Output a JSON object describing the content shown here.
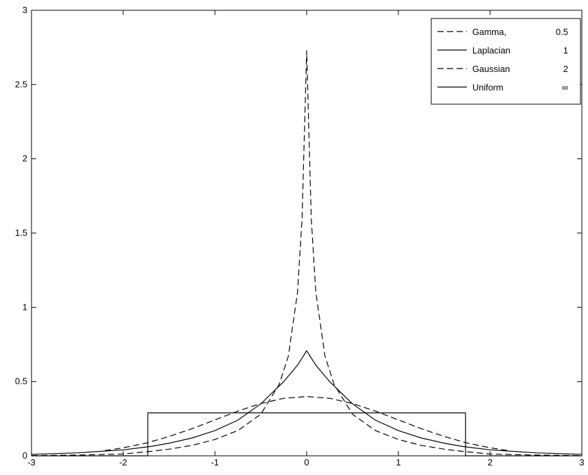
{
  "chart_data": {
    "type": "line",
    "title": "",
    "xlabel": "",
    "ylabel": "",
    "xlim": [
      -3,
      3
    ],
    "ylim": [
      0,
      3
    ],
    "x_ticks": [
      "-3",
      "-2",
      "-1",
      "0",
      "1",
      "2",
      "3"
    ],
    "y_ticks": [
      "0",
      "0.5",
      "1",
      "1.5",
      "2",
      "2.5",
      "3"
    ],
    "grid": false,
    "legend_position": "top-right",
    "series": [
      {
        "name": "Gamma,",
        "param": "0.5",
        "style": "dashed",
        "points": [
          [
            -3,
            0.002
          ],
          [
            -2.5,
            0.005
          ],
          [
            -2,
            0.012
          ],
          [
            -1.7,
            0.03
          ],
          [
            -1.5,
            0.045
          ],
          [
            -1.25,
            0.07
          ],
          [
            -1,
            0.11
          ],
          [
            -0.75,
            0.17
          ],
          [
            -0.5,
            0.28
          ],
          [
            -0.3,
            0.48
          ],
          [
            -0.2,
            0.67
          ],
          [
            -0.1,
            1.1
          ],
          [
            -0.05,
            1.6
          ],
          [
            0,
            2.73
          ],
          [
            0.05,
            1.6
          ],
          [
            0.1,
            1.1
          ],
          [
            0.2,
            0.67
          ],
          [
            0.3,
            0.48
          ],
          [
            0.5,
            0.28
          ],
          [
            0.75,
            0.17
          ],
          [
            1,
            0.11
          ],
          [
            1.25,
            0.07
          ],
          [
            1.5,
            0.045
          ],
          [
            1.7,
            0.03
          ],
          [
            2,
            0.012
          ],
          [
            2.5,
            0.005
          ],
          [
            3,
            0.002
          ]
        ]
      },
      {
        "name": "Laplacian",
        "param": "1",
        "style": "solid",
        "points": [
          [
            -3,
            0.01
          ],
          [
            -2.5,
            0.02
          ],
          [
            -2,
            0.04
          ],
          [
            -1.7,
            0.063
          ],
          [
            -1.5,
            0.085
          ],
          [
            -1.25,
            0.12
          ],
          [
            -1,
            0.17
          ],
          [
            -0.75,
            0.24
          ],
          [
            -0.5,
            0.35
          ],
          [
            -0.25,
            0.5
          ],
          [
            -0.1,
            0.61
          ],
          [
            0,
            0.707
          ],
          [
            0.1,
            0.61
          ],
          [
            0.25,
            0.5
          ],
          [
            0.5,
            0.35
          ],
          [
            0.75,
            0.24
          ],
          [
            1,
            0.17
          ],
          [
            1.25,
            0.12
          ],
          [
            1.5,
            0.085
          ],
          [
            1.7,
            0.063
          ],
          [
            2,
            0.04
          ],
          [
            2.5,
            0.02
          ],
          [
            3,
            0.01
          ]
        ]
      },
      {
        "name": "Gaussian",
        "param": "2",
        "style": "dashed",
        "points": [
          [
            -2.2,
            0.035
          ],
          [
            -2,
            0.054
          ],
          [
            -1.75,
            0.086
          ],
          [
            -1.5,
            0.13
          ],
          [
            -1.25,
            0.183
          ],
          [
            -1,
            0.242
          ],
          [
            -0.75,
            0.301
          ],
          [
            -0.5,
            0.352
          ],
          [
            -0.25,
            0.387
          ],
          [
            0,
            0.399
          ],
          [
            0.25,
            0.387
          ],
          [
            0.5,
            0.352
          ],
          [
            0.75,
            0.301
          ],
          [
            1,
            0.242
          ],
          [
            1.25,
            0.183
          ],
          [
            1.5,
            0.13
          ],
          [
            1.75,
            0.086
          ],
          [
            2,
            0.054
          ],
          [
            2.2,
            0.035
          ]
        ]
      },
      {
        "name": "Uniform",
        "param": "∞",
        "style": "solid",
        "points": [
          [
            -3,
            0
          ],
          [
            -1.732,
            0
          ],
          [
            -1.732,
            0.2887
          ],
          [
            1.732,
            0.2887
          ],
          [
            1.732,
            0
          ],
          [
            3,
            0
          ]
        ]
      }
    ]
  }
}
